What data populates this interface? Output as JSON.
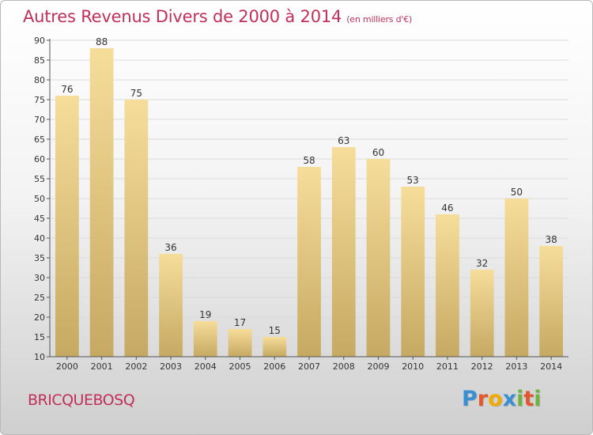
{
  "title": "Autres Revenus Divers de 2000 à 2014",
  "unit": "(en milliers d'€)",
  "town": "BRICQUEBOSQ",
  "logo": {
    "letters": [
      "P",
      "r",
      "o",
      "x",
      "i",
      "t",
      "i"
    ],
    "colors": [
      "#3a8fd0",
      "#e4572e",
      "#f2a900",
      "#3a8fd0",
      "#6cb33f",
      "#e4572e",
      "#6cb33f"
    ]
  },
  "colors": {
    "bar_top": "#f6dd9a",
    "bar_bottom": "#c6a962",
    "grid": "#dcdcdc",
    "axis": "#555555",
    "text": "#333333",
    "accent": "#c0305a"
  },
  "chart_data": {
    "type": "bar",
    "title": "Autres Revenus Divers de 2000 à 2014",
    "xlabel": "",
    "ylabel": "",
    "categories": [
      "2000",
      "2001",
      "2002",
      "2003",
      "2004",
      "2005",
      "2006",
      "2007",
      "2008",
      "2009",
      "2010",
      "2011",
      "2012",
      "2013",
      "2014"
    ],
    "values": [
      76,
      88,
      75,
      36,
      19,
      17,
      15,
      58,
      63,
      60,
      53,
      46,
      32,
      50,
      38
    ],
    "ylim": [
      10,
      90
    ],
    "yticks": [
      10,
      15,
      20,
      25,
      30,
      35,
      40,
      45,
      50,
      55,
      60,
      65,
      70,
      75,
      80,
      85,
      90
    ],
    "grid": true,
    "data_labels": true
  }
}
